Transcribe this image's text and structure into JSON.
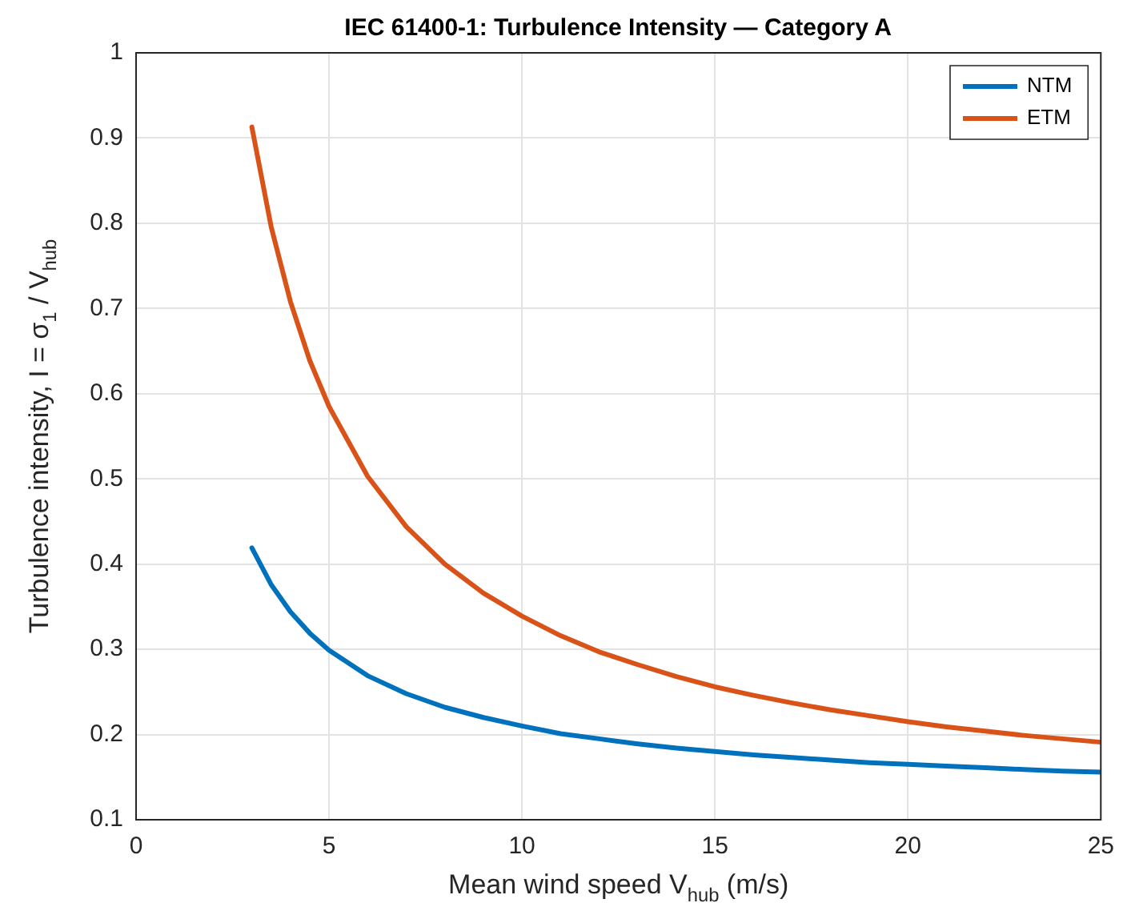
{
  "chart_data": {
    "type": "line",
    "title": "IEC 61400-1: Turbulence Intensity — Category A",
    "xlabel": "Mean wind speed V$_{hub}$ (m/s)",
    "ylabel": "Turbulence intensity, I = σ$_{1}$ / V$_{hub}$",
    "x": [
      3,
      3.5,
      4,
      4.5,
      5,
      6,
      7,
      8,
      9,
      10,
      11,
      12,
      13,
      14,
      15,
      16,
      17,
      18,
      19,
      20,
      21,
      22,
      23,
      24,
      25
    ],
    "series": [
      {
        "name": "NTM",
        "color": "#0072bd",
        "values": [
          0.419,
          0.376,
          0.344,
          0.319,
          0.299,
          0.269,
          0.248,
          0.232,
          0.22,
          0.21,
          0.201,
          0.195,
          0.189,
          0.184,
          0.18,
          0.176,
          0.173,
          0.17,
          0.167,
          0.165,
          0.163,
          0.161,
          0.159,
          0.157,
          0.156
        ]
      },
      {
        "name": "ETM",
        "color": "#d95319",
        "values": [
          0.913,
          0.796,
          0.708,
          0.639,
          0.585,
          0.503,
          0.444,
          0.4,
          0.366,
          0.339,
          0.316,
          0.297,
          0.282,
          0.268,
          0.256,
          0.246,
          0.237,
          0.229,
          0.222,
          0.215,
          0.209,
          0.204,
          0.199,
          0.195,
          0.191
        ]
      }
    ],
    "xlim": [
      0,
      25
    ],
    "xticks": [
      0,
      5,
      10,
      15,
      20,
      25
    ],
    "ylim": [
      0.1,
      1
    ],
    "yticks": [
      0.1,
      0.2,
      0.3,
      0.4,
      0.5,
      0.6,
      0.7,
      0.8,
      0.9,
      1
    ],
    "grid": true,
    "legend": "top right",
    "marker": "none",
    "line_style": "solid"
  }
}
